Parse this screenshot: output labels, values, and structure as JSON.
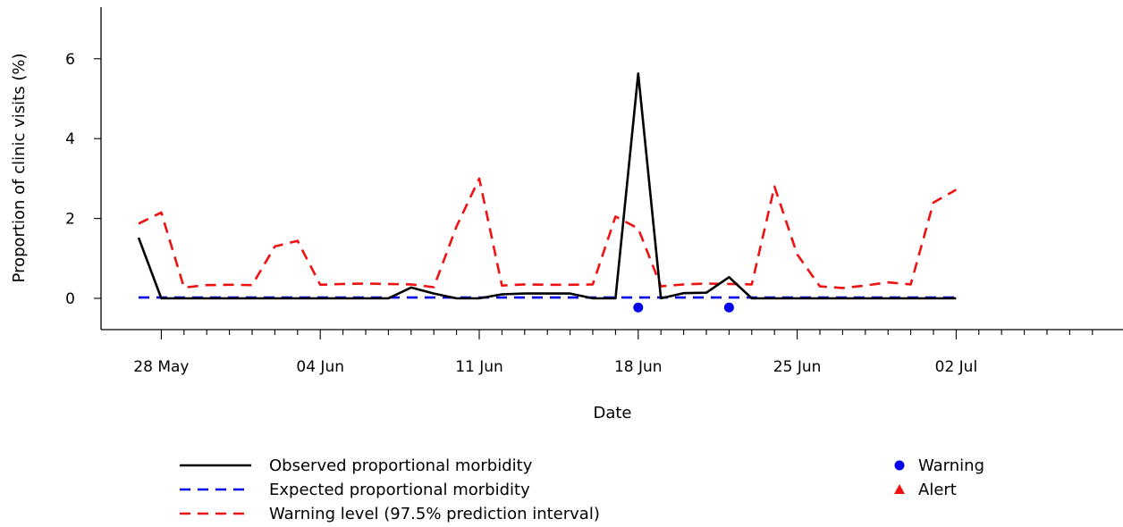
{
  "chart_data": {
    "type": "line",
    "xlabel": "Date",
    "ylabel": "Proportion of clinic visits (%)",
    "x_start": "2023-05-27",
    "ylim": [
      -0.8,
      7.2
    ],
    "y_ticks": [
      0,
      2,
      4,
      6
    ],
    "x_tick_labels": [
      {
        "day_index": 1,
        "label": "28 May"
      },
      {
        "day_index": 8,
        "label": "04 Jun"
      },
      {
        "day_index": 15,
        "label": "11 Jun"
      },
      {
        "day_index": 22,
        "label": "18 Jun"
      },
      {
        "day_index": 29,
        "label": "25 Jun"
      },
      {
        "day_index": 36,
        "label": "02 Jul"
      }
    ],
    "x_minor_ticks": [
      1,
      2,
      3,
      4,
      5,
      6,
      7,
      8,
      9,
      10,
      11,
      12,
      13,
      14,
      15,
      16,
      17,
      18,
      19,
      20,
      21,
      22,
      23,
      24,
      25,
      26,
      27,
      28,
      29,
      30,
      31,
      32,
      33,
      34,
      35,
      36,
      37,
      38,
      39,
      40,
      41,
      42
    ],
    "series": [
      {
        "name": "Observed proportional morbidity",
        "color": "#000000",
        "style": "solid",
        "values": [
          1.52,
          0,
          0,
          0,
          0,
          0,
          0,
          0,
          0,
          0,
          0,
          0,
          0.27,
          0.12,
          0,
          0,
          0.1,
          0.12,
          0.12,
          0.12,
          0,
          0,
          5.63,
          0,
          0.13,
          0.14,
          0.53,
          0,
          0,
          0,
          0,
          0,
          0,
          0,
          0,
          0,
          0
        ]
      },
      {
        "name": "Expected proportional morbidity",
        "color": "#0000ee",
        "style": "dashed",
        "values": [
          0.02,
          0.02,
          0.02,
          0.02,
          0.02,
          0.02,
          0.02,
          0.02,
          0.02,
          0.02,
          0.02,
          0.02,
          0.02,
          0.02,
          0.02,
          0.02,
          0.02,
          0.02,
          0.02,
          0.02,
          0.02,
          0.02,
          0.02,
          0.02,
          0.02,
          0.02,
          0.02,
          0.02,
          0.02,
          0.02,
          0.02,
          0.02,
          0.02,
          0.02,
          0.02,
          0.02,
          0.02
        ]
      },
      {
        "name": "Warning level (97.5% prediction interval)",
        "color": "#ee1111",
        "style": "dashed",
        "values": [
          1.87,
          2.15,
          0.27,
          0.33,
          0.34,
          0.33,
          1.3,
          1.44,
          0.34,
          0.36,
          0.37,
          0.36,
          0.35,
          0.28,
          1.8,
          3.0,
          0.32,
          0.35,
          0.34,
          0.34,
          0.35,
          2.05,
          1.75,
          0.3,
          0.35,
          0.37,
          0.36,
          0.35,
          2.8,
          1.1,
          0.3,
          0.26,
          0.32,
          0.4,
          0.35,
          2.4,
          2.72
        ]
      }
    ],
    "markers": [
      {
        "type": "Warning",
        "shape": "circle",
        "color": "#0000ee",
        "day_index": 22,
        "y": -0.23
      },
      {
        "type": "Warning",
        "shape": "circle",
        "color": "#0000ee",
        "day_index": 26,
        "y": -0.23
      }
    ],
    "legend": {
      "placement": "bottom",
      "lines": [
        {
          "label": "Observed proportional morbidity",
          "color": "#000000",
          "style": "solid"
        },
        {
          "label": "Expected proportional morbidity",
          "color": "#0000ee",
          "style": "dashed"
        },
        {
          "label": "Warning level (97.5% prediction interval)",
          "color": "#ee1111",
          "style": "dashed"
        }
      ],
      "symbols": [
        {
          "label": "Warning",
          "shape": "circle",
          "color": "#0000ee"
        },
        {
          "label": "Alert",
          "shape": "triangle",
          "color": "#ee1111"
        }
      ]
    }
  }
}
